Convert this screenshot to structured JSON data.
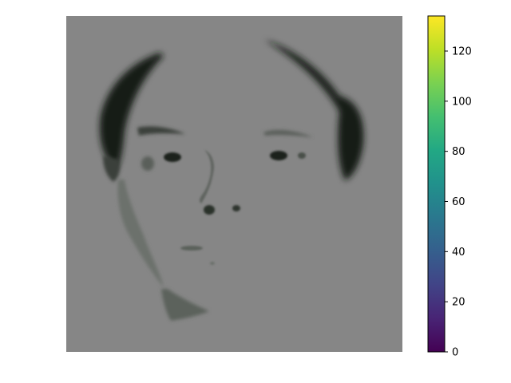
{
  "chart_data": {
    "type": "heatmap",
    "title": "",
    "xlabel": "",
    "ylabel": "",
    "axes_visible": false,
    "image_description_note": "",
    "colorbar": {
      "colormap": "viridis",
      "range": [
        0,
        134
      ],
      "ticks": [
        0,
        20,
        40,
        60,
        80,
        100,
        120
      ],
      "tick_labels": [
        "0",
        "20",
        "40",
        "60",
        "80",
        "100",
        "120"
      ],
      "placement": "right"
    },
    "colors": {
      "image_background": "#868686",
      "dark_features": "#101510"
    }
  }
}
